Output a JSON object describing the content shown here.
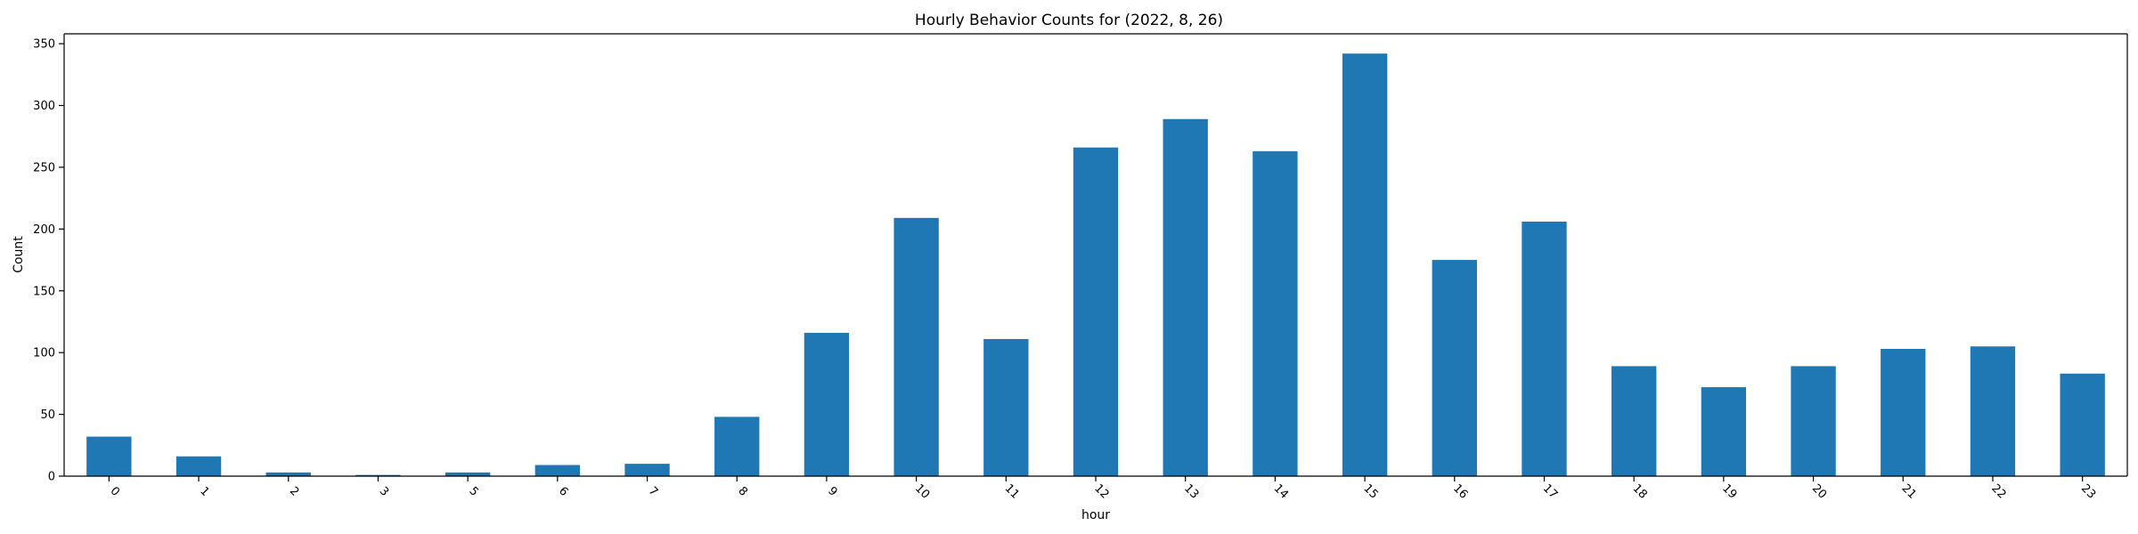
{
  "chart_data": {
    "type": "bar",
    "title": "Hourly Behavior Counts for (2022, 8, 26)",
    "xlabel": "hour",
    "ylabel": "Count",
    "categories": [
      "0",
      "1",
      "2",
      "3",
      "5",
      "6",
      "7",
      "8",
      "9",
      "10",
      "11",
      "12",
      "13",
      "14",
      "15",
      "16",
      "17",
      "18",
      "19",
      "20",
      "21",
      "22",
      "23"
    ],
    "values": [
      32,
      16,
      3,
      1,
      3,
      9,
      10,
      48,
      116,
      209,
      111,
      266,
      289,
      263,
      342,
      175,
      206,
      89,
      72,
      89,
      103,
      105,
      83
    ],
    "ylim": [
      0,
      358
    ],
    "yticks": [
      0,
      50,
      100,
      150,
      200,
      250,
      300,
      350
    ],
    "bar_color": "#1f77b4",
    "grid": false,
    "legend": "none"
  }
}
